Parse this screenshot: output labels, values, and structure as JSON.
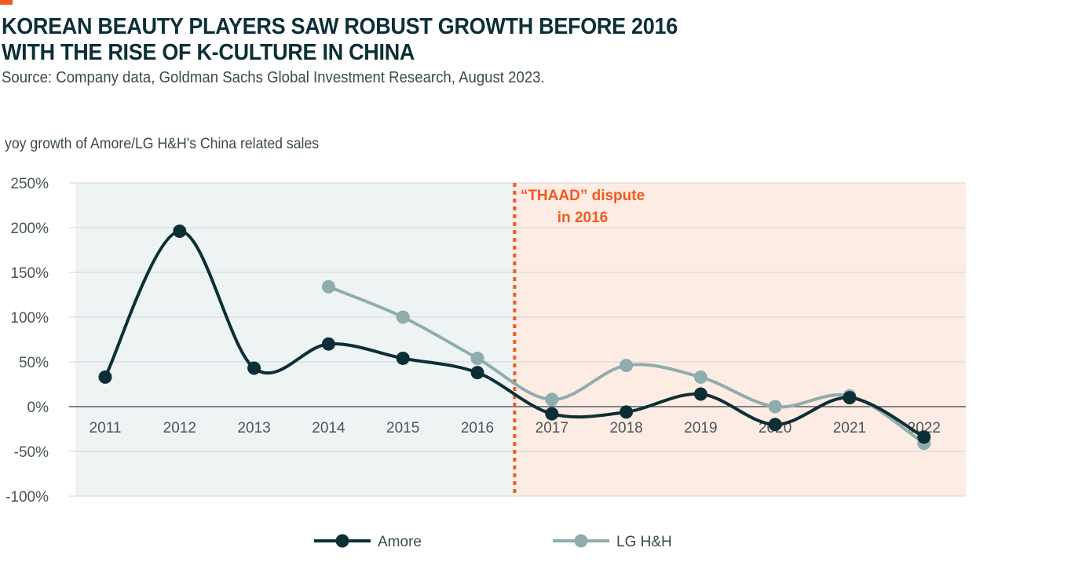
{
  "header": {
    "title_line1": "KOREAN BEAUTY PLAYERS SAW ROBUST GROWTH BEFORE 2016",
    "title_line2": "WITH THE RISE OF K-CULTURE IN CHINA",
    "source": "Source: Company data, Goldman Sachs Global Investment Research, August 2023."
  },
  "colors": {
    "accent": "#f05a22",
    "amore": "#0c2f36",
    "lghh": "#8fadad",
    "pre_region": "#eef3f4",
    "post_region": "#fdece3"
  },
  "chart_data": {
    "type": "line",
    "ylabel": "yoy growth of Amore/LG H&H's China related sales",
    "xlabel": "",
    "categories": [
      "2011",
      "2012",
      "2013",
      "2014",
      "2015",
      "2016",
      "2017",
      "2018",
      "2019",
      "2020",
      "2021",
      "2022"
    ],
    "ylim": [
      -100,
      250
    ],
    "yticks": [
      250,
      200,
      150,
      100,
      50,
      0,
      -50,
      -100
    ],
    "ytick_labels": [
      "250%",
      "200%",
      "150%",
      "100%",
      "50%",
      "0%",
      "-50%",
      "-100%"
    ],
    "grid": true,
    "series": [
      {
        "name": "Amore",
        "values": [
          33,
          196,
          43,
          70,
          54,
          38,
          -8,
          -6,
          14,
          -20,
          10,
          -34
        ]
      },
      {
        "name": "LG H&H",
        "values": [
          null,
          null,
          null,
          134,
          100,
          54,
          8,
          46,
          33,
          0,
          12,
          -41
        ]
      }
    ],
    "annotation": {
      "line1": "“THAAD” dispute",
      "line2": "in 2016",
      "divider_x": 6.5
    },
    "shading": {
      "before": "2011-2016",
      "after": "2017-2022"
    },
    "legend": {
      "placement": "bottom-center"
    }
  }
}
